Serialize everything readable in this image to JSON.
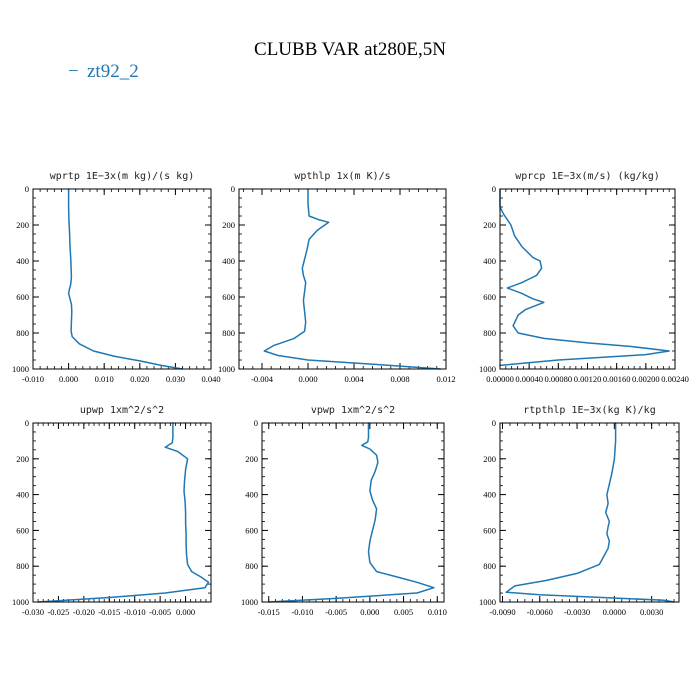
{
  "title": "CLUBB VAR at280E,5N",
  "legend": {
    "label": "zt92_2",
    "marker": "−"
  },
  "colors": {
    "line": "#1f77b4",
    "axis": "#000000",
    "text": "#000000"
  },
  "chart_data": [
    {
      "type": "line",
      "title": "wprtp   1E−3x(m kg)/(s kg)",
      "xlim": [
        -0.01,
        0.04
      ],
      "ylim": [
        1000,
        0
      ],
      "xticks": [
        -0.01,
        0.0,
        0.01,
        0.02,
        0.03,
        0.04
      ],
      "xtick_labels": [
        "-0.010",
        "0.000",
        "0.010",
        "0.020",
        "0.030",
        "0.040"
      ],
      "yticks": [
        0,
        200,
        400,
        600,
        800,
        1000
      ],
      "ytick_labels": [
        "0",
        "200",
        "400",
        "600",
        "800",
        "1000"
      ],
      "series": [
        {
          "name": "zt92_2",
          "x": [
            0.0,
            0.0,
            0.0001,
            0.0003,
            0.0004,
            0.0006,
            0.0007,
            0.0008,
            0.0006,
            0.0002,
            0.0,
            0.0004,
            0.0008,
            0.0009,
            0.0008,
            0.0007,
            0.001,
            0.003,
            0.007,
            0.013,
            0.02,
            0.026,
            0.032
          ],
          "y": [
            0,
            100,
            180,
            260,
            320,
            380,
            440,
            490,
            530,
            560,
            580,
            610,
            640,
            680,
            740,
            790,
            820,
            860,
            900,
            930,
            955,
            980,
            1000
          ]
        }
      ]
    },
    {
      "type": "line",
      "title": "wpthlp   1x(m K)/s",
      "xlim": [
        -0.006,
        0.012
      ],
      "ylim": [
        1000,
        0
      ],
      "xticks": [
        -0.004,
        0.0,
        0.004,
        0.008,
        0.012
      ],
      "xtick_labels": [
        "-0.004",
        "0.000",
        "0.004",
        "0.008",
        "0.012"
      ],
      "yticks": [
        0,
        200,
        400,
        600,
        800,
        1000
      ],
      "ytick_labels": [
        "0",
        "200",
        "400",
        "600",
        "800",
        "1000"
      ],
      "series": [
        {
          "name": "zt92_2",
          "x": [
            0.0,
            0.0,
            0.0001,
            0.0009,
            0.0018,
            0.0008,
            0.0001,
            -0.0001,
            -0.0003,
            -0.0005,
            -0.0004,
            -0.0002,
            -0.0003,
            -0.0004,
            -0.0003,
            -0.0002,
            -0.0003,
            -0.0012,
            -0.003,
            -0.0038,
            -0.0026,
            0.0,
            0.006,
            0.0115
          ],
          "y": [
            0,
            80,
            150,
            170,
            185,
            230,
            280,
            340,
            390,
            440,
            480,
            520,
            570,
            620,
            680,
            740,
            790,
            830,
            870,
            900,
            925,
            950,
            975,
            1000
          ]
        }
      ]
    },
    {
      "type": "line",
      "title": "wprcp   1E−3x(m/s) (kg/kg)",
      "xlim": [
        0.0,
        0.0024
      ],
      "ylim": [
        1000,
        0
      ],
      "xticks": [
        0.0,
        0.0004,
        0.0008,
        0.0012,
        0.0016,
        0.002,
        0.0024
      ],
      "xtick_labels": [
        "0.00000",
        "0.00040",
        "0.00080",
        "0.00120",
        "0.00160",
        "0.00200",
        "0.00240"
      ],
      "yticks": [
        0,
        200,
        400,
        600,
        800,
        1000
      ],
      "ytick_labels": [
        "0",
        "200",
        "400",
        "600",
        "800",
        "1000"
      ],
      "series": [
        {
          "name": "zt92_2",
          "x": [
            0.0,
            0.0,
            5e-05,
            0.0001,
            0.00015,
            0.0002,
            0.0003,
            0.00045,
            0.00055,
            0.00057,
            0.0005,
            0.0004,
            0.0003,
            0.0001,
            0.0003,
            0.00045,
            0.0006,
            0.00035,
            0.00025,
            0.00018,
            0.00025,
            0.0006,
            0.0012,
            0.0018,
            0.00232,
            0.002,
            0.0008,
            0.0
          ],
          "y": [
            0,
            100,
            140,
            170,
            200,
            260,
            320,
            380,
            400,
            440,
            480,
            500,
            520,
            550,
            580,
            610,
            630,
            670,
            700,
            760,
            800,
            830,
            855,
            875,
            900,
            920,
            950,
            980
          ]
        }
      ]
    },
    {
      "type": "line",
      "title": "upwp   1xm^2/s^2",
      "xlim": [
        -0.03,
        0.005
      ],
      "ylim": [
        1000,
        0
      ],
      "xticks": [
        -0.03,
        -0.025,
        -0.02,
        -0.015,
        -0.01,
        -0.005,
        0.0
      ],
      "xtick_labels": [
        "-0.030",
        "-0.025",
        "-0.020",
        "-0.015",
        "-0.010",
        "-0.005",
        "0.000"
      ],
      "yticks": [
        0,
        200,
        400,
        600,
        800,
        1000
      ],
      "ytick_labels": [
        "0",
        "200",
        "400",
        "600",
        "800",
        "1000"
      ],
      "series": [
        {
          "name": "zt92_2",
          "x": [
            -0.0025,
            -0.0025,
            -0.0026,
            -0.004,
            -0.0015,
            0.0004,
            0.0,
            -0.0002,
            -0.0003,
            -0.0001,
            0.0,
            0.0,
            0.0001,
            0.0001,
            0.0002,
            0.0004,
            0.0012,
            0.003,
            0.0045,
            0.0038,
            -0.004,
            -0.015,
            -0.029
          ],
          "y": [
            0,
            80,
            110,
            135,
            160,
            200,
            260,
            320,
            380,
            440,
            500,
            560,
            620,
            680,
            740,
            790,
            830,
            860,
            890,
            920,
            950,
            975,
            1000
          ]
        }
      ]
    },
    {
      "type": "line",
      "title": "vpwp   1xm^2/s^2",
      "xlim": [
        -0.016,
        0.011
      ],
      "ylim": [
        1000,
        0
      ],
      "xticks": [
        -0.015,
        -0.01,
        -0.005,
        0.0,
        0.005,
        0.01
      ],
      "xtick_labels": [
        "-0.015",
        "-0.010",
        "-0.005",
        "0.000",
        "0.005",
        "0.010"
      ],
      "yticks": [
        0,
        200,
        400,
        600,
        800,
        1000
      ],
      "ytick_labels": [
        "0",
        "200",
        "400",
        "600",
        "800",
        "1000"
      ],
      "series": [
        {
          "name": "zt92_2",
          "x": [
            -0.0002,
            -0.0002,
            -0.0003,
            -0.0012,
            0.0,
            0.001,
            0.0012,
            0.0008,
            0.0002,
            0.0,
            0.0004,
            0.001,
            0.0008,
            0.0004,
            0.0,
            -0.0002,
            0.0,
            0.001,
            0.004,
            0.007,
            0.0095,
            0.007,
            -0.005,
            -0.015
          ],
          "y": [
            0,
            80,
            105,
            125,
            145,
            180,
            220,
            270,
            320,
            380,
            430,
            480,
            540,
            600,
            660,
            720,
            780,
            830,
            860,
            890,
            920,
            950,
            980,
            1000
          ]
        }
      ]
    },
    {
      "type": "line",
      "title": "rtpthlp   1E−3x(kg K)/kg",
      "xlim": [
        -0.0092,
        0.0052
      ],
      "ylim": [
        1000,
        0
      ],
      "xticks": [
        -0.009,
        -0.006,
        -0.003,
        0.0,
        0.003
      ],
      "xtick_labels": [
        "-0.0090",
        "-0.0060",
        "-0.0030",
        "0.0000",
        "0.0030"
      ],
      "yticks": [
        0,
        200,
        400,
        600,
        800,
        1000
      ],
      "ytick_labels": [
        "0",
        "200",
        "400",
        "600",
        "800",
        "1000"
      ],
      "series": [
        {
          "name": "zt92_2",
          "x": [
            0.0001,
            0.0001,
            0.0,
            -0.0002,
            -0.0004,
            -0.0006,
            -0.0005,
            -0.0007,
            -0.0004,
            -0.0005,
            -0.0006,
            -0.0004,
            -0.0005,
            -0.0012,
            -0.003,
            -0.0055,
            -0.008,
            -0.0087,
            -0.006,
            -0.001,
            0.004,
            0.0048
          ],
          "y": [
            0,
            100,
            200,
            280,
            340,
            400,
            450,
            500,
            550,
            580,
            620,
            660,
            700,
            790,
            840,
            880,
            910,
            945,
            960,
            975,
            990,
            1000
          ]
        }
      ]
    }
  ]
}
